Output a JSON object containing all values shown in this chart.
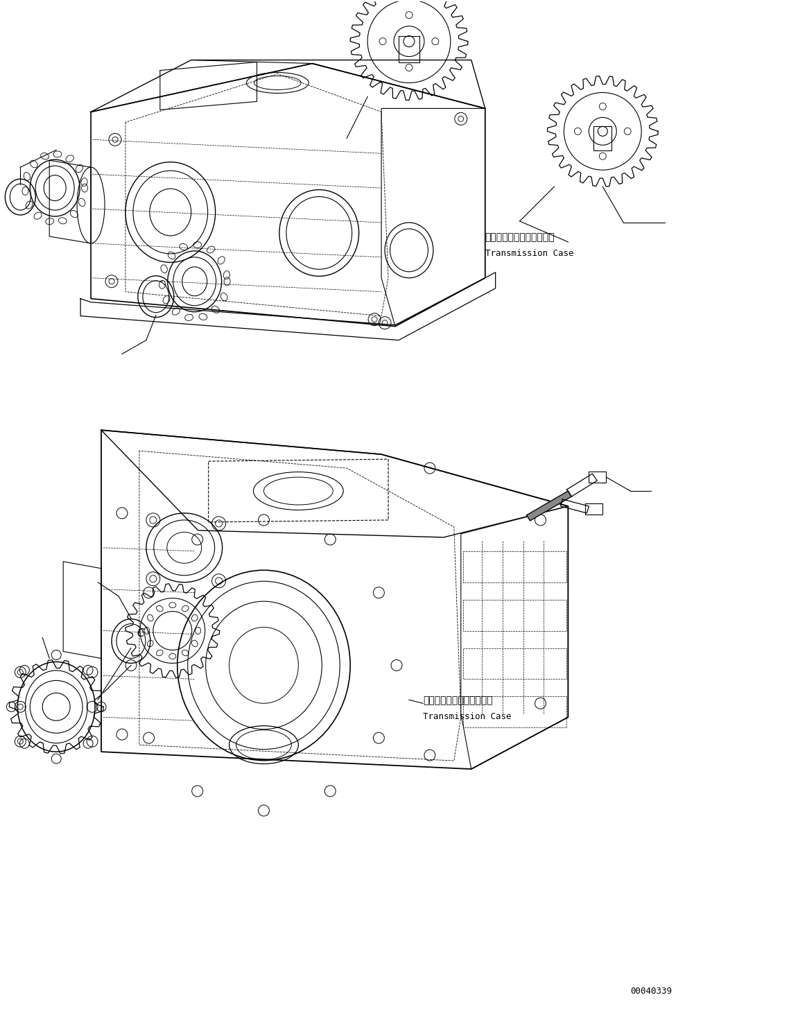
{
  "bg_color": "#ffffff",
  "line_color": "#000000",
  "label1_jp": "トランスミッションケース",
  "label1_en": "Transmission Case",
  "label2_jp": "トランスミッションケース",
  "label2_en": "Transmission Case",
  "part_number": "00040339",
  "fig_width": 11.51,
  "fig_height": 14.58
}
